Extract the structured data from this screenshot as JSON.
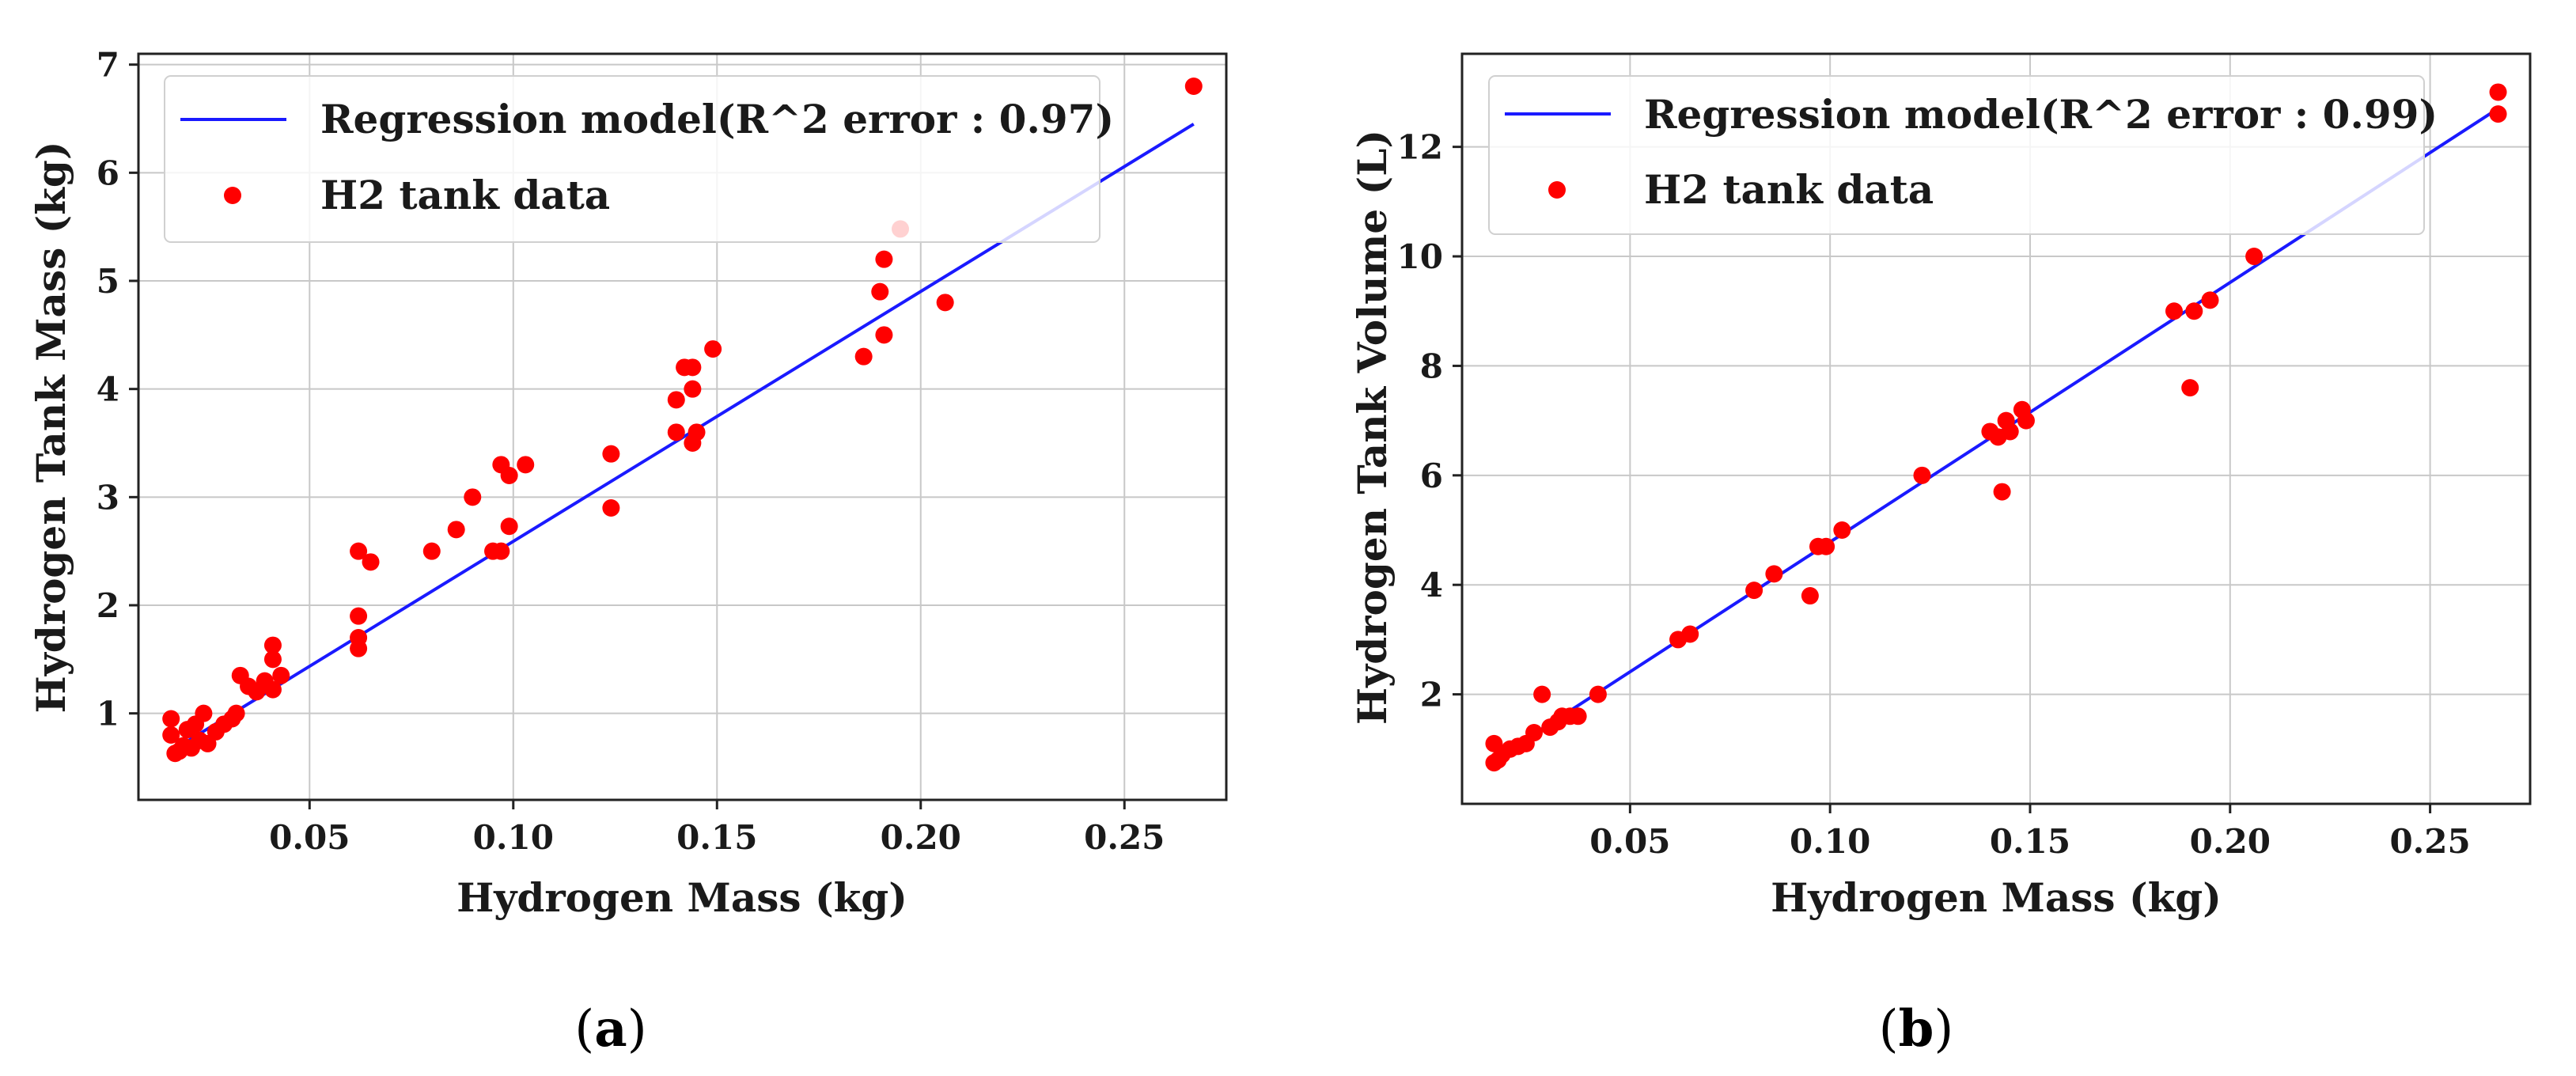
{
  "chart_data": [
    {
      "type": "scatter",
      "panel_label": "a",
      "xlabel": "Hydrogen Mass (kg)",
      "ylabel": "Hydrogen Tank Mass (kg)",
      "xlim": [
        0.008,
        0.275
      ],
      "ylim": [
        0.2,
        7.1
      ],
      "xticks": [
        0.05,
        0.1,
        0.15,
        0.2,
        0.25
      ],
      "xtick_labels": [
        "0.05",
        "0.10",
        "0.15",
        "0.20",
        "0.25"
      ],
      "yticks": [
        1,
        2,
        3,
        4,
        5,
        6,
        7
      ],
      "ytick_labels": [
        "1",
        "2",
        "3",
        "4",
        "5",
        "6",
        "7"
      ],
      "grid": true,
      "legend_position": "top-left",
      "legend": [
        "Regression model(R^2 error : 0.97)",
        "H2 tank data"
      ],
      "line_color": "#1a1aff",
      "point_color": "#ff0000",
      "regression": {
        "x": [
          0.016,
          0.267
        ],
        "y": [
          0.65,
          6.45
        ]
      },
      "points": [
        [
          0.016,
          0.95
        ],
        [
          0.016,
          0.8
        ],
        [
          0.017,
          0.63
        ],
        [
          0.018,
          0.65
        ],
        [
          0.019,
          0.7
        ],
        [
          0.02,
          0.85
        ],
        [
          0.021,
          0.68
        ],
        [
          0.022,
          0.9
        ],
        [
          0.023,
          0.75
        ],
        [
          0.024,
          1.0
        ],
        [
          0.025,
          0.72
        ],
        [
          0.027,
          0.83
        ],
        [
          0.029,
          0.9
        ],
        [
          0.031,
          0.95
        ],
        [
          0.032,
          1.0
        ],
        [
          0.033,
          1.35
        ],
        [
          0.035,
          1.25
        ],
        [
          0.037,
          1.2
        ],
        [
          0.039,
          1.3
        ],
        [
          0.041,
          1.63
        ],
        [
          0.041,
          1.5
        ],
        [
          0.041,
          1.22
        ],
        [
          0.043,
          1.35
        ],
        [
          0.062,
          2.5
        ],
        [
          0.062,
          1.9
        ],
        [
          0.062,
          1.7
        ],
        [
          0.062,
          1.6
        ],
        [
          0.065,
          2.4
        ],
        [
          0.08,
          2.5
        ],
        [
          0.086,
          2.7
        ],
        [
          0.09,
          3.0
        ],
        [
          0.095,
          2.5
        ],
        [
          0.097,
          2.5
        ],
        [
          0.097,
          3.3
        ],
        [
          0.099,
          3.2
        ],
        [
          0.099,
          2.73
        ],
        [
          0.103,
          3.3
        ],
        [
          0.124,
          3.4
        ],
        [
          0.124,
          2.9
        ],
        [
          0.14,
          3.6
        ],
        [
          0.14,
          3.9
        ],
        [
          0.142,
          4.2
        ],
        [
          0.144,
          4.2
        ],
        [
          0.144,
          4.0
        ],
        [
          0.144,
          3.5
        ],
        [
          0.145,
          3.6
        ],
        [
          0.149,
          4.37
        ],
        [
          0.186,
          4.3
        ],
        [
          0.19,
          4.9
        ],
        [
          0.191,
          5.2
        ],
        [
          0.191,
          4.5
        ],
        [
          0.195,
          5.48
        ],
        [
          0.206,
          4.8
        ],
        [
          0.267,
          6.8
        ]
      ]
    },
    {
      "type": "scatter",
      "panel_label": "b",
      "xlabel": "Hydrogen Mass (kg)",
      "ylabel": "Hydrogen Tank Volume (L)",
      "xlim": [
        0.008,
        0.275
      ],
      "ylim": [
        0.0,
        13.7
      ],
      "xticks": [
        0.05,
        0.1,
        0.15,
        0.2,
        0.25
      ],
      "xtick_labels": [
        "0.05",
        "0.10",
        "0.15",
        "0.20",
        "0.25"
      ],
      "yticks": [
        2,
        4,
        6,
        8,
        10,
        12
      ],
      "ytick_labels": [
        "2",
        "4",
        "6",
        "8",
        "10",
        "12"
      ],
      "grid": true,
      "legend_position": "top-left",
      "legend": [
        "Regression model(R^2 error : 0.99)",
        "H2 tank data"
      ],
      "line_color": "#1a1aff",
      "point_color": "#ff0000",
      "regression": {
        "x": [
          0.016,
          0.267
        ],
        "y": [
          0.8,
          12.7
        ]
      },
      "points": [
        [
          0.016,
          1.1
        ],
        [
          0.016,
          0.75
        ],
        [
          0.017,
          0.8
        ],
        [
          0.018,
          0.9
        ],
        [
          0.02,
          1.0
        ],
        [
          0.022,
          1.05
        ],
        [
          0.024,
          1.1
        ],
        [
          0.026,
          1.3
        ],
        [
          0.028,
          2.0
        ],
        [
          0.03,
          1.4
        ],
        [
          0.032,
          1.5
        ],
        [
          0.033,
          1.6
        ],
        [
          0.035,
          1.6
        ],
        [
          0.037,
          1.6
        ],
        [
          0.042,
          2.0
        ],
        [
          0.062,
          3.0
        ],
        [
          0.065,
          3.1
        ],
        [
          0.081,
          3.9
        ],
        [
          0.086,
          4.2
        ],
        [
          0.095,
          3.8
        ],
        [
          0.097,
          4.7
        ],
        [
          0.099,
          4.7
        ],
        [
          0.103,
          5.0
        ],
        [
          0.123,
          6.0
        ],
        [
          0.14,
          6.8
        ],
        [
          0.142,
          6.7
        ],
        [
          0.143,
          5.7
        ],
        [
          0.144,
          7.0
        ],
        [
          0.145,
          6.8
        ],
        [
          0.148,
          7.2
        ],
        [
          0.149,
          7.0
        ],
        [
          0.186,
          9.0
        ],
        [
          0.19,
          7.6
        ],
        [
          0.191,
          9.0
        ],
        [
          0.195,
          9.2
        ],
        [
          0.206,
          10.0
        ],
        [
          0.267,
          13.0
        ],
        [
          0.267,
          12.6
        ]
      ]
    }
  ]
}
